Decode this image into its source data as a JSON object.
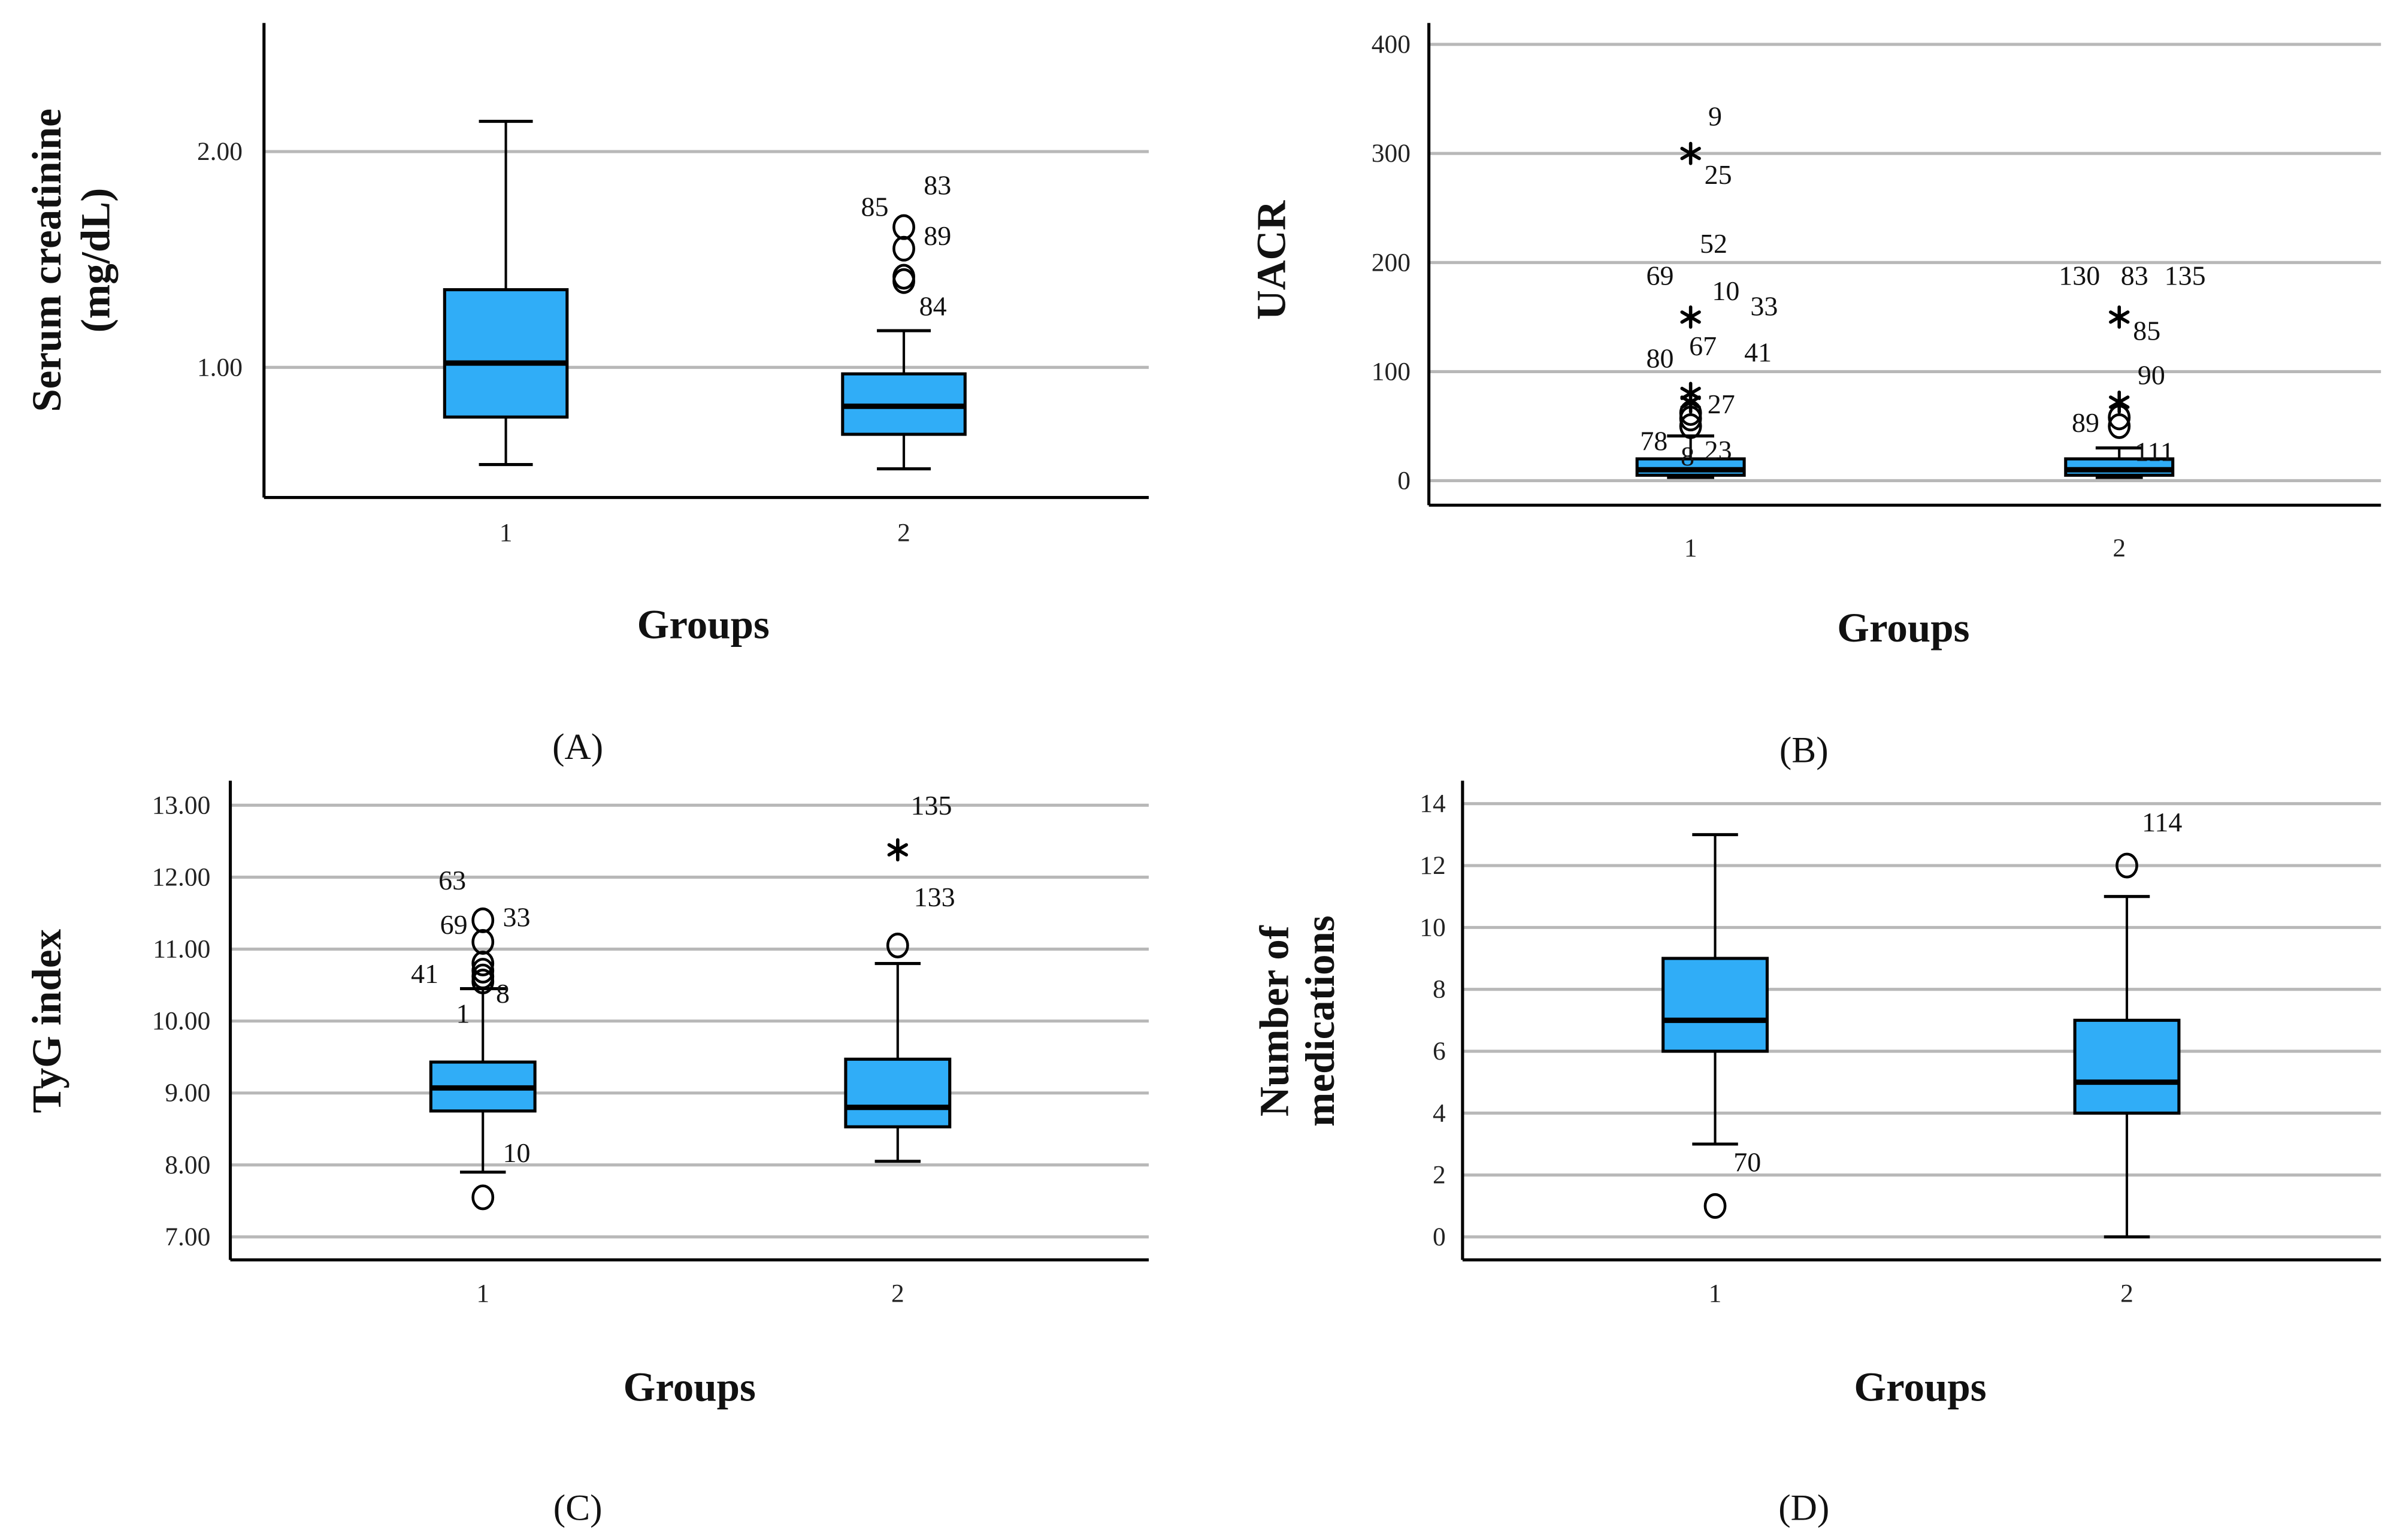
{
  "colors": {
    "box_fill": "#30adf7",
    "grid": "#b8b8b8",
    "axis": "#000000"
  },
  "chart_data": [
    {
      "panel": "(A)",
      "type": "boxplot",
      "xlabel": "Groups",
      "ylabel": [
        "Serum creatinine",
        "(mg/dL)"
      ],
      "categories": [
        "1",
        "2"
      ],
      "yticks": [
        "1.00",
        "2.00"
      ],
      "ytick_values": [
        1.0,
        2.0
      ],
      "ylim": [
        0.4,
        2.6
      ],
      "grid": true,
      "boxes": [
        {
          "group": "1",
          "min": 0.55,
          "q1": 0.77,
          "median": 1.02,
          "q3": 1.36,
          "max": 2.14,
          "outliers": [],
          "extremes": []
        },
        {
          "group": "2",
          "min": 0.53,
          "q1": 0.69,
          "median": 0.82,
          "q3": 0.97,
          "max": 1.17,
          "outliers": [
            1.4,
            1.42,
            1.55,
            1.65
          ],
          "extremes": []
        }
      ],
      "labels": [
        "85",
        "83",
        "89",
        "84"
      ]
    },
    {
      "panel": "(B)",
      "type": "boxplot",
      "xlabel": "Groups",
      "ylabel": [
        "UACR"
      ],
      "categories": [
        "1",
        "2"
      ],
      "yticks": [
        "0",
        "100",
        "200",
        "300",
        "400"
      ],
      "ytick_values": [
        0,
        100,
        200,
        300,
        400
      ],
      "ylim": [
        -20,
        420
      ],
      "grid": true,
      "boxes": [
        {
          "group": "1",
          "min": 3,
          "q1": 5,
          "median": 10,
          "q3": 20,
          "max": 41,
          "outliers": [
            50,
            57,
            62
          ],
          "extremes": [
            72,
            80,
            150,
            300
          ]
        },
        {
          "group": "2",
          "min": 3,
          "q1": 5,
          "median": 10,
          "q3": 20,
          "max": 30,
          "outliers": [
            50,
            58
          ],
          "extremes": [
            72,
            150
          ]
        }
      ],
      "labels": [
        "9",
        "25",
        "52",
        "69",
        "10",
        "33",
        "67",
        "80",
        "41",
        "27",
        "78",
        "8",
        "23",
        "130",
        "83",
        "135",
        "85",
        "90",
        "89",
        "111"
      ]
    },
    {
      "panel": "(C)",
      "type": "boxplot",
      "xlabel": "Groups",
      "ylabel": [
        "TyG index"
      ],
      "categories": [
        "1",
        "2"
      ],
      "yticks": [
        "7.00",
        "8.00",
        "9.00",
        "10.00",
        "11.00",
        "12.00",
        "13.00"
      ],
      "ytick_values": [
        7,
        8,
        9,
        10,
        11,
        12,
        13
      ],
      "ylim": [
        6.7,
        13.3
      ],
      "grid": true,
      "boxes": [
        {
          "group": "1",
          "min": 7.9,
          "q1": 8.75,
          "median": 9.07,
          "q3": 9.43,
          "max": 10.45,
          "outliers": [
            7.55,
            10.55,
            10.62,
            10.7,
            10.8,
            11.1,
            11.4
          ],
          "extremes": []
        },
        {
          "group": "2",
          "min": 8.05,
          "q1": 8.53,
          "median": 8.8,
          "q3": 9.47,
          "max": 10.8,
          "outliers": [
            11.05
          ],
          "extremes": [
            12.38
          ]
        }
      ],
      "labels": [
        "63",
        "69",
        "33",
        "41",
        "1",
        "8",
        "10",
        "135",
        "133"
      ]
    },
    {
      "panel": "(D)",
      "type": "boxplot",
      "xlabel": "Groups",
      "ylabel": [
        "Number of",
        "medications"
      ],
      "categories": [
        "1",
        "2"
      ],
      "yticks": [
        "0",
        "2",
        "4",
        "6",
        "8",
        "10",
        "12",
        "14"
      ],
      "ytick_values": [
        0,
        2,
        4,
        6,
        8,
        10,
        12,
        14
      ],
      "ylim": [
        -0.75,
        14.75
      ],
      "grid": true,
      "boxes": [
        {
          "group": "1",
          "min": 3,
          "q1": 6,
          "median": 7,
          "q3": 9,
          "max": 13,
          "outliers": [
            1
          ],
          "extremes": []
        },
        {
          "group": "2",
          "min": 0,
          "q1": 4,
          "median": 5,
          "q3": 7,
          "max": 11,
          "outliers": [
            12
          ],
          "extremes": []
        }
      ],
      "labels": [
        "70",
        "114"
      ]
    }
  ]
}
